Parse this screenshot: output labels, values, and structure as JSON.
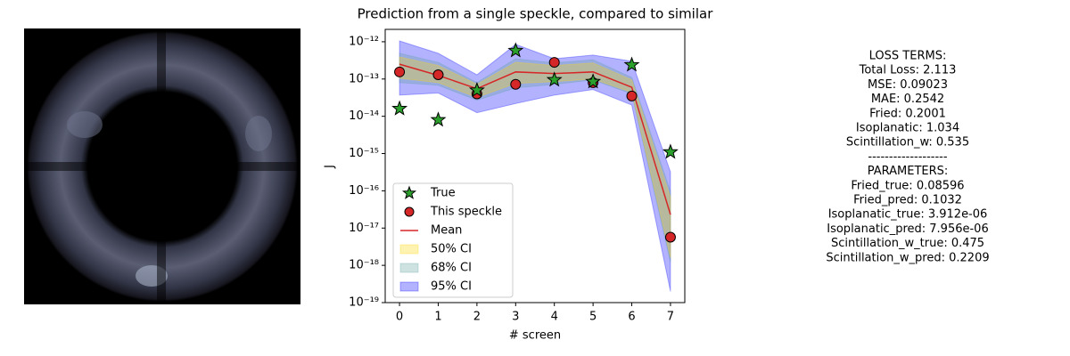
{
  "chart_data": {
    "type": "line",
    "title": "Prediction from a single speckle, compared to similar",
    "xlabel": "# screen",
    "ylabel": "J",
    "yscale": "log",
    "legend": "lower left",
    "alpha": 0.3,
    "x": [
      0,
      1,
      2,
      3,
      4,
      5,
      6,
      7
    ],
    "xlim": [
      -0.37,
      7.37
    ],
    "xticks": [
      0,
      1,
      2,
      3,
      4,
      5,
      6,
      7
    ],
    "ylim": [
      1e-19,
      2.15e-12
    ],
    "yticks": [
      {
        "value": 1e-19,
        "label": "10⁻¹⁹"
      },
      {
        "value": 1e-18,
        "label": "10⁻¹⁸"
      },
      {
        "value": 1e-17,
        "label": "10⁻¹⁷"
      },
      {
        "value": 1e-16,
        "label": "10⁻¹⁶"
      },
      {
        "value": 1e-15,
        "label": "10⁻¹⁵"
      },
      {
        "value": 1e-14,
        "label": "10⁻¹⁴"
      },
      {
        "value": 1e-13,
        "label": "10⁻¹³"
      },
      {
        "value": 1e-12,
        "label": "10⁻¹²"
      }
    ],
    "series": [
      {
        "name": "True",
        "kind": "star",
        "color": "#2ca02c",
        "values": [
          1.6e-14,
          8e-15,
          5e-14,
          5.8e-13,
          9.5e-14,
          8.5e-14,
          2.4e-13,
          1.1e-15
        ]
      },
      {
        "name": "This speckle",
        "kind": "circle",
        "color": "#d62728",
        "values": [
          1.55e-13,
          1.3e-13,
          4e-14,
          7.2e-14,
          2.8e-13,
          8e-14,
          3.5e-14,
          5.7e-18
        ]
      },
      {
        "name": "Mean",
        "kind": "line",
        "color": "#d62728",
        "values": [
          2.5e-13,
          1.25e-13,
          5.5e-14,
          1.55e-13,
          1.4e-13,
          1.55e-13,
          6e-14,
          2.3e-17
        ]
      },
      {
        "name": "50% CI",
        "kind": "band",
        "color": "#ffd700",
        "upper": [
          3.9e-13,
          2.3e-13,
          7.2e-14,
          2.8e-13,
          2.3e-13,
          2.7e-13,
          9.5e-14,
          6.8e-17
        ],
        "lower": [
          1.05e-13,
          8e-14,
          3.2e-14,
          7.6e-14,
          8.5e-14,
          1e-13,
          4.4e-14,
          1.6e-18
        ]
      },
      {
        "name": "68% CI",
        "kind": "band",
        "color": "#5f9ea0",
        "upper": [
          4.9e-13,
          2.8e-13,
          8e-14,
          3.5e-13,
          2.7e-13,
          3.3e-13,
          1.1e-13,
          9.5e-17
        ],
        "lower": [
          8e-14,
          6.8e-14,
          2.7e-14,
          5.8e-14,
          7.2e-14,
          9.5e-14,
          4e-14,
          1.2e-18
        ]
      },
      {
        "name": "95% CI",
        "kind": "band",
        "color": "#0000ff",
        "upper": [
          1.05e-12,
          4.9e-13,
          1.3e-13,
          8.5e-13,
          3.5e-13,
          4.4e-13,
          3e-13,
          3.2e-16
        ],
        "lower": [
          3.7e-14,
          4.2e-14,
          1.25e-14,
          2.2e-14,
          3.7e-14,
          5.2e-14,
          2e-14,
          2e-19
        ]
      }
    ]
  },
  "text_panel": {
    "lines": [
      "LOSS TERMS:",
      "Total Loss: 2.113",
      "MSE: 0.09023",
      "MAE: 0.2542",
      "Fried: 0.2001",
      "Isoplanatic: 1.034",
      "Scintillation_w: 0.535",
      "-------------------",
      "PARAMETERS:",
      "Fried_true: 0.08596",
      "Fried_pred: 0.1032",
      "Isoplanatic_true: 3.912e-06",
      "Isoplanatic_pred: 7.956e-06",
      "Scintillation_w_true: 0.475",
      "Scintillation_w_pred: 0.2209"
    ]
  }
}
